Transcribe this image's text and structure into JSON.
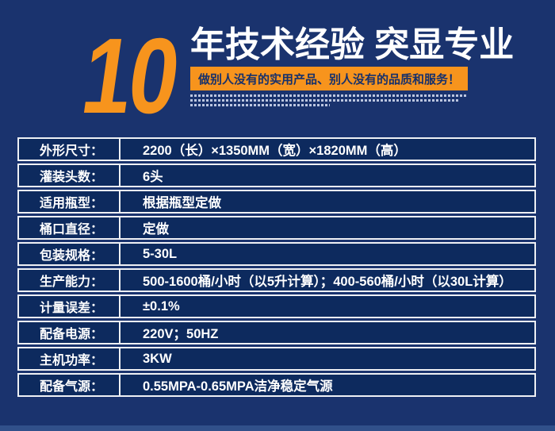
{
  "colors": {
    "background": "#1a336e",
    "cell": "#0d2a5e",
    "accent_orange": "#f7941d",
    "border": "#eef0f4",
    "tagline_text": "#17316b",
    "bottom_strip": "#31508a"
  },
  "header": {
    "big_number": "10",
    "headline": "年技术经验 突显专业",
    "tagline": "做别人没有的实用产品、别人没有的品质和服务！"
  },
  "spec_table": {
    "rows": [
      {
        "label": "外形尺寸：",
        "value": "2200（长）×1350MM（宽）×1820MM（高）"
      },
      {
        "label": "灌装头数：",
        "value": "6头"
      },
      {
        "label": "适用瓶型：",
        "value": "根据瓶型定做"
      },
      {
        "label": "桶口直径：",
        "value": "定做"
      },
      {
        "label": "包装规格：",
        "value": "5-30L"
      },
      {
        "label": "生产能力：",
        "value": "500-1600桶/小时（以5升计算）；400-560桶/小时（以30L计算）"
      },
      {
        "label": "计量误差：",
        "value": "±0.1%"
      },
      {
        "label": "配备电源：",
        "value": "220V；50HZ"
      },
      {
        "label": "主机功率：",
        "value": "3KW"
      },
      {
        "label": "配备气源：",
        "value": "0.55MPA-0.65MPA洁净稳定气源"
      }
    ]
  }
}
